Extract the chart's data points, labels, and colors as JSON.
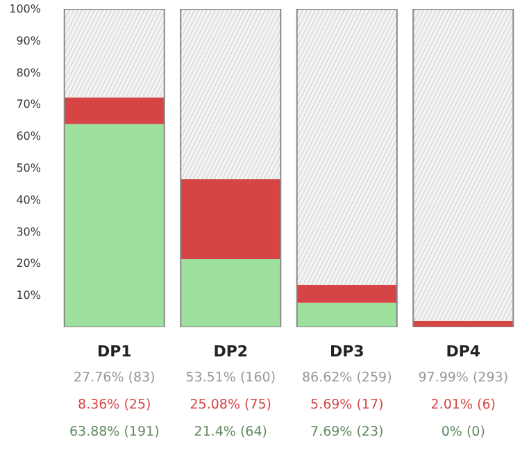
{
  "chart_data": {
    "type": "bar",
    "stacked": true,
    "categories": [
      "DP1",
      "DP2",
      "DP3",
      "DP4"
    ],
    "ylim": [
      0,
      100
    ],
    "yticks": [
      {
        "value": 10,
        "label": "10%"
      },
      {
        "value": 20,
        "label": "20%"
      },
      {
        "value": 30,
        "label": "30%"
      },
      {
        "value": 40,
        "label": "40%"
      },
      {
        "value": 50,
        "label": "50%"
      },
      {
        "value": 60,
        "label": "60%"
      },
      {
        "value": 70,
        "label": "70%"
      },
      {
        "value": 80,
        "label": "80%"
      },
      {
        "value": 90,
        "label": "90%"
      },
      {
        "value": 100,
        "label": "100%"
      }
    ],
    "series": [
      {
        "color": "#9ee09e",
        "values": [
          63.88,
          21.4,
          7.69,
          0
        ],
        "value_labels": [
          "63.88% (191)",
          "21.4% (64)",
          "7.69% (23)",
          "0% (0)"
        ]
      },
      {
        "color": "#d64545",
        "values": [
          8.36,
          25.08,
          5.69,
          2.01
        ],
        "value_labels": [
          "8.36% (25)",
          "25.08% (75)",
          "5.69% (17)",
          "2.01% (6)"
        ]
      },
      {
        "color": "#f4f4f4",
        "values": [
          27.76,
          53.51,
          86.62,
          97.99
        ],
        "value_labels": [
          "27.76% (83)",
          "53.51% (160)",
          "86.62% (259)",
          "97.99% (293)"
        ]
      }
    ]
  }
}
